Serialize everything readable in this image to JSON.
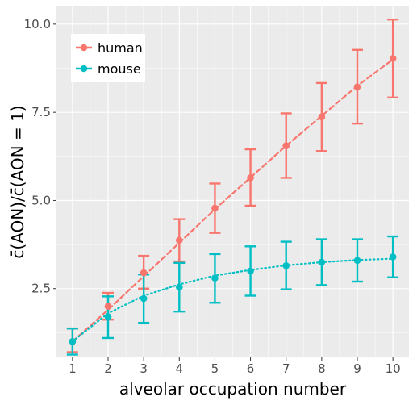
{
  "chart_data": {
    "type": "line",
    "title": "",
    "xlabel": "alveolar occupation number",
    "ylabel": "c̄(AON)/c̄(AON = 1)",
    "x": [
      1,
      2,
      3,
      4,
      5,
      6,
      7,
      8,
      9,
      10
    ],
    "xticks": [
      "1",
      "2",
      "3",
      "4",
      "5",
      "6",
      "7",
      "8",
      "9",
      "10"
    ],
    "yticks": [
      "2.5",
      "5.0",
      "7.5",
      "10.0"
    ],
    "ytick_values": [
      2.5,
      5.0,
      7.5,
      10.0
    ],
    "xlim": [
      0.55,
      10.45
    ],
    "ylim": [
      0.55,
      10.5
    ],
    "grid": true,
    "legend_position": "top-left",
    "series": [
      {
        "name": "human",
        "color": "#F8766D",
        "line_style": "dashed",
        "y": [
          1.0,
          2.0,
          2.95,
          3.87,
          4.78,
          5.64,
          6.55,
          7.37,
          8.22,
          9.03
        ],
        "y_low": [
          0.7,
          1.62,
          2.5,
          3.27,
          4.08,
          4.85,
          5.64,
          6.4,
          7.18,
          7.92
        ],
        "y_high": [
          1.37,
          2.38,
          3.43,
          4.47,
          5.48,
          6.45,
          7.47,
          8.33,
          9.27,
          10.13
        ],
        "fit": [
          1.0,
          1.9,
          2.85,
          3.8,
          4.75,
          5.65,
          6.55,
          7.4,
          8.25,
          9.0
        ]
      },
      {
        "name": "mouse",
        "color": "#00BFC4",
        "line_style": "dotted",
        "y": [
          1.0,
          1.7,
          2.22,
          2.54,
          2.8,
          3.0,
          3.15,
          3.25,
          3.3,
          3.4
        ],
        "y_low": [
          0.63,
          1.1,
          1.53,
          1.85,
          2.1,
          2.3,
          2.48,
          2.6,
          2.7,
          2.82
        ],
        "y_high": [
          1.37,
          2.28,
          2.9,
          3.23,
          3.48,
          3.7,
          3.83,
          3.9,
          3.9,
          3.98
        ],
        "fit": [
          1.0,
          1.8,
          2.3,
          2.62,
          2.87,
          3.03,
          3.16,
          3.25,
          3.31,
          3.35
        ]
      }
    ]
  }
}
